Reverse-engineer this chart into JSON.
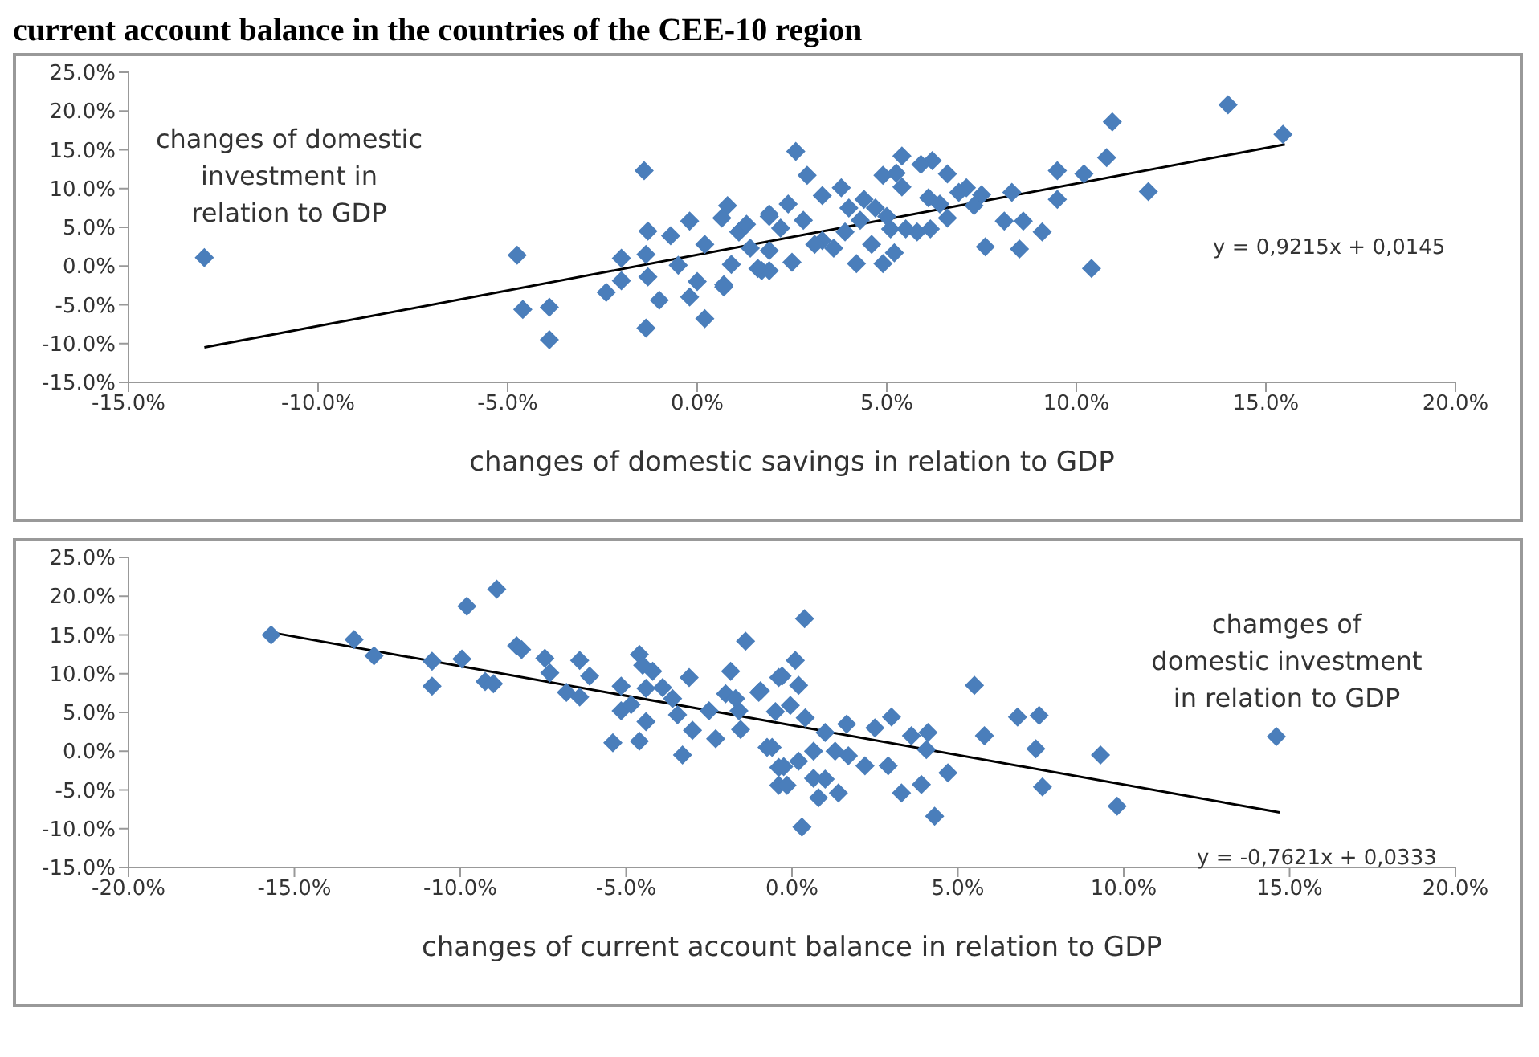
{
  "chart_data": [
    {
      "type": "scatter",
      "title": "current account balance in the countries of the CEE-10 region",
      "xlabel": "changes of domestic savings in relation to GDP",
      "ylabel": "changes of domestic investment  in relation to GDP",
      "marker": "diamond",
      "grid": false,
      "legend": false,
      "xlim": [
        -15,
        20
      ],
      "xticks": [
        {
          "value": -15,
          "label": "-15.0%"
        },
        {
          "value": -10,
          "label": "-10.0%"
        },
        {
          "value": -5,
          "label": "-5.0%"
        },
        {
          "value": 0,
          "label": "0.0%"
        },
        {
          "value": 5,
          "label": "5.0%"
        },
        {
          "value": 10,
          "label": "10.0%"
        },
        {
          "value": 15,
          "label": "15.0%"
        },
        {
          "value": 20,
          "label": "20.0%"
        }
      ],
      "ylim": [
        -15,
        25
      ],
      "yticks": [
        {
          "value": -15,
          "label": "-15.0%"
        },
        {
          "value": -10,
          "label": "-10.0%"
        },
        {
          "value": -5,
          "label": "-5.0%"
        },
        {
          "value": 0,
          "label": "0.0%"
        },
        {
          "value": 5,
          "label": "5.0%"
        },
        {
          "value": 10,
          "label": "10.0%"
        },
        {
          "value": 15,
          "label": "15.0%"
        },
        {
          "value": 20,
          "label": "20.0%"
        },
        {
          "value": 25,
          "label": "25.0%"
        }
      ],
      "annotations": [
        "y = 0,9215x + 0,0145"
      ],
      "series": [
        {
          "type": "scatter",
          "color": "#4a7ebb",
          "x": [
            -13,
            -4.75,
            -1.4,
            -3.9,
            -4.6,
            -3.9,
            -1.35,
            -0.2,
            -1.3,
            -2.4,
            -2,
            -2,
            -1.35,
            -1.3,
            -1,
            -0.7,
            -0.5,
            0,
            -0.2,
            0.2,
            0.8,
            0.65,
            1.9,
            0.7,
            0.2,
            1.1,
            1.7,
            14,
            10.95,
            15.45,
            2.6,
            5.4,
            6.2,
            5.9,
            10.8,
            2.9,
            4.9,
            5.25,
            6.6,
            9.5,
            10.2,
            5.4,
            3.8,
            11.9,
            9.5,
            8.3,
            7.1,
            7.5,
            7.3,
            6.6,
            8.1,
            8.6,
            9.1,
            7.6,
            8.5,
            10.4,
            6.15,
            5.8,
            6.1,
            4.4,
            3.3,
            2.4,
            1.9,
            5.1,
            4.2,
            4.9,
            5.2,
            2.5,
            1.9,
            1.6,
            0.7,
            0.9,
            1.1,
            1.3,
            2.2,
            2.8,
            3.3,
            3.6,
            3.9,
            4.3,
            4.6,
            4.7,
            5,
            5.5,
            6.4,
            6.9,
            1.9,
            3.1,
            4,
            1.4
          ],
          "values": [
            1.1,
            1.4,
            12.3,
            -5.3,
            -5.6,
            -9.5,
            -8,
            5.8,
            4.5,
            -3.4,
            -1.9,
            1,
            1.5,
            -1.4,
            -4.4,
            3.9,
            0.1,
            -2,
            -4,
            -6.8,
            7.8,
            6.2,
            6.7,
            -2.4,
            2.8,
            4.4,
            -0.6,
            20.8,
            18.6,
            17,
            14.8,
            14.2,
            13.6,
            13.1,
            14,
            11.7,
            11.7,
            12,
            11.9,
            12.3,
            11.9,
            10.2,
            10.1,
            9.6,
            8.6,
            9.5,
            10.1,
            9.2,
            7.8,
            6.2,
            5.8,
            5.8,
            4.4,
            2.5,
            2.2,
            -0.3,
            4.8,
            4.4,
            8.8,
            8.6,
            9.1,
            8,
            6.4,
            4.8,
            0.3,
            0.3,
            1.7,
            0.5,
            -0.6,
            -0.3,
            -2.7,
            0.2,
            4.4,
            5.4,
            4.9,
            5.9,
            3.3,
            2.3,
            4.4,
            5.9,
            2.8,
            7.5,
            6.4,
            4.8,
            8,
            9.5,
            2,
            2.8,
            7.5,
            2.3
          ]
        },
        {
          "type": "line",
          "color": "#000000",
          "marker": "none",
          "x": [
            -13,
            15.5
          ],
          "values": [
            -10.5,
            15.7
          ]
        }
      ]
    },
    {
      "type": "scatter",
      "xlabel": "changes of current account balance in relation to GDP",
      "ylabel": "chamges of domestic investment in relation to GDP",
      "marker": "diamond",
      "grid": false,
      "legend": false,
      "xlim": [
        -20,
        20
      ],
      "xticks": [
        {
          "value": -20,
          "label": "-20.0%"
        },
        {
          "value": -15,
          "label": "-15.0%"
        },
        {
          "value": -10,
          "label": "-10.0%"
        },
        {
          "value": -5,
          "label": "-5.0%"
        },
        {
          "value": 0,
          "label": "0.0%"
        },
        {
          "value": 5,
          "label": "5.0%"
        },
        {
          "value": 10,
          "label": "10.0%"
        },
        {
          "value": 15,
          "label": "15.0%"
        },
        {
          "value": 20,
          "label": "20.0%"
        }
      ],
      "ylim": [
        -15,
        25
      ],
      "yticks": [
        {
          "value": -15,
          "label": "-15.0%"
        },
        {
          "value": -10,
          "label": "-10.0%"
        },
        {
          "value": -5,
          "label": "-5.0%"
        },
        {
          "value": 0,
          "label": "0.0%"
        },
        {
          "value": 5,
          "label": "5.0%"
        },
        {
          "value": 10,
          "label": "10.0%"
        },
        {
          "value": 15,
          "label": "15.0%"
        },
        {
          "value": 20,
          "label": "20.0%"
        },
        {
          "value": 25,
          "label": "25.0%"
        }
      ],
      "annotations": [
        "y = -0,7621x + 0,0333"
      ],
      "series": [
        {
          "type": "scatter",
          "color": "#4a7ebb",
          "x": [
            -15.7,
            -13.2,
            -12.6,
            -10.85,
            -10.85,
            -9.95,
            -9.8,
            -8.9,
            -9.25,
            -9,
            -8.3,
            -8.15,
            -7.45,
            -7.3,
            -6.4,
            -6.1,
            -6.8,
            -6.4,
            -5.15,
            -5.4,
            -4.6,
            -4.6,
            -4.5,
            -4.2,
            -4.4,
            -3.9,
            -3.3,
            -3.1,
            -5.15,
            -4.85,
            -4.4,
            -3.6,
            -3.45,
            -3,
            -2,
            -1.4,
            -1.85,
            -1,
            -0.4,
            -0.4,
            -0.4,
            -2.3,
            -1.55,
            -0.75,
            -2.5,
            -1.6,
            0.38,
            0.1,
            -0.3,
            0.2,
            -0.95,
            5.5,
            6.8,
            7.45,
            5.8,
            7.35,
            9.3,
            14.6,
            7.55,
            9.8,
            4.3,
            4.7,
            3.9,
            3.3,
            3,
            2.5,
            1.65,
            1.7,
            2.2,
            2.9,
            3.6,
            4.1,
            4.05,
            0.3,
            -0.15,
            0.65,
            1,
            1.4,
            0.8,
            -0.25,
            0.2,
            -0.5,
            -0.05,
            0.4,
            1,
            1.3,
            0.65,
            -0.6,
            -1.7
          ],
          "values": [
            15,
            14.4,
            12.3,
            11.6,
            8.4,
            11.9,
            18.7,
            20.9,
            9,
            8.7,
            13.6,
            13.1,
            12,
            10.1,
            11.7,
            9.7,
            7.6,
            7,
            8.4,
            1.1,
            1.3,
            12.5,
            11.1,
            10.3,
            3.8,
            8.2,
            -0.5,
            9.5,
            5.2,
            6,
            8.1,
            6.8,
            4.7,
            2.7,
            7.4,
            14.2,
            10.3,
            7.6,
            9.5,
            -2.1,
            -4.4,
            1.6,
            2.8,
            0.5,
            5.2,
            5.2,
            17.1,
            11.7,
            9.7,
            8.5,
            7.8,
            8.5,
            4.4,
            4.6,
            2,
            0.3,
            -0.5,
            1.9,
            -4.6,
            -7.1,
            -8.4,
            -2.8,
            -4.3,
            -5.4,
            4.4,
            3,
            3.5,
            -0.6,
            -1.9,
            -1.9,
            2,
            2.4,
            0.2,
            -9.8,
            -4.4,
            -3.5,
            -3.6,
            -5.4,
            -6,
            -2,
            -1.3,
            5.1,
            5.9,
            4.3,
            2.4,
            0,
            0,
            0.5,
            6.8
          ]
        },
        {
          "type": "line",
          "color": "#000000",
          "marker": "none",
          "x": [
            -15.8,
            14.7
          ],
          "values": [
            15.4,
            -7.9
          ]
        }
      ]
    }
  ]
}
